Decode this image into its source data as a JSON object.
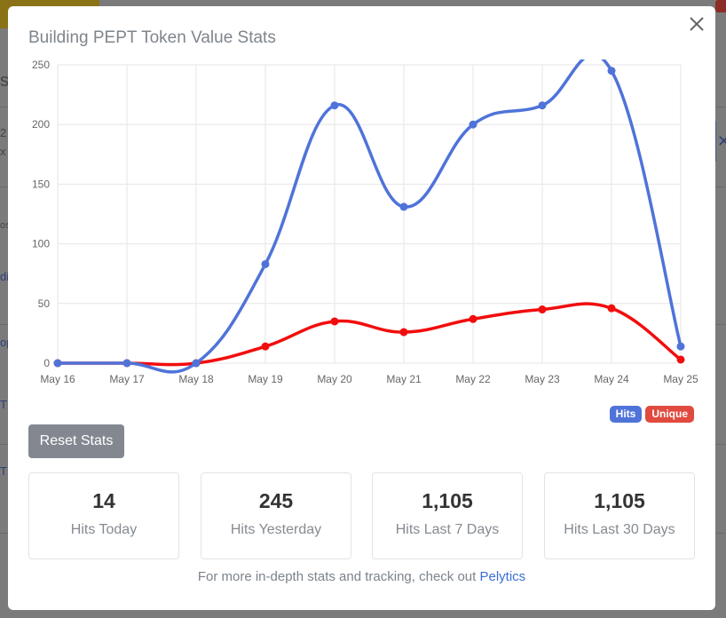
{
  "modal": {
    "title": "Building PEPT Token Value Stats",
    "close_icon": "close-icon",
    "reset_label": "Reset Stats"
  },
  "colors": {
    "hits": "#4f73d9",
    "unique": "#f20d0d",
    "hits_badge": "#4f73d9",
    "unique_badge": "#e04a3f"
  },
  "legend": {
    "hits": "Hits",
    "unique": "Unique"
  },
  "chart_data": {
    "type": "line",
    "categories": [
      "May 16",
      "May 17",
      "May 18",
      "May 19",
      "May 20",
      "May 21",
      "May 22",
      "May 23",
      "May 24",
      "May 25"
    ],
    "series": [
      {
        "name": "Hits",
        "values": [
          0,
          0,
          0,
          83,
          216,
          131,
          200,
          216,
          245,
          14
        ]
      },
      {
        "name": "Unique",
        "values": [
          0,
          0,
          0,
          14,
          35,
          26,
          37,
          45,
          46,
          3
        ]
      }
    ],
    "yticks": [
      0,
      50,
      100,
      150,
      200,
      250
    ],
    "ylim": [
      0,
      250
    ],
    "grid": true,
    "legend": "bottom-right"
  },
  "stats": [
    {
      "value": "14",
      "label": "Hits Today"
    },
    {
      "value": "245",
      "label": "Hits Yesterday"
    },
    {
      "value": "1,105",
      "label": "Hits Last 7 Days"
    },
    {
      "value": "1,105",
      "label": "Hits Last 30 Days"
    }
  ],
  "footer": {
    "text": "For more in-depth stats and tracking, check out ",
    "link": "Pelytics"
  },
  "background": {
    "fragments": [
      "s",
      "2",
      "x",
      "os",
      "di",
      "op",
      "T",
      "T"
    ]
  }
}
